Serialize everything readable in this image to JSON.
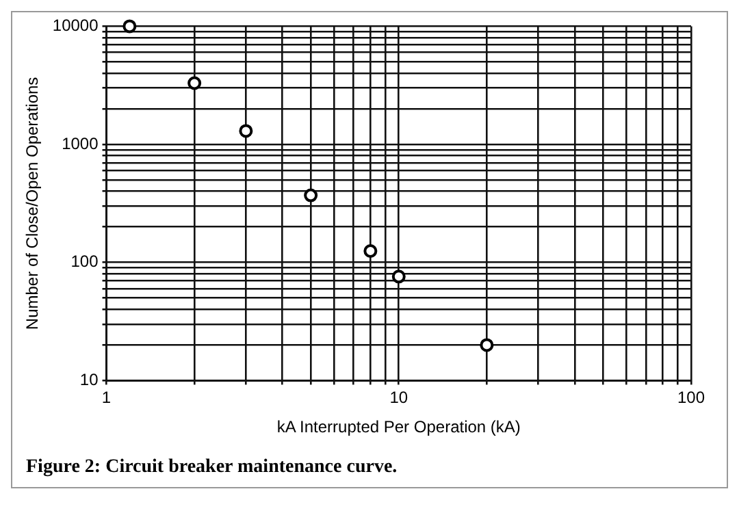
{
  "chart_data": {
    "type": "scatter",
    "xlabel": "kA Interrupted Per Operation (kA)",
    "ylabel": "Number of Close/Open Operations",
    "log": "xy",
    "grid": true,
    "marker": "circle",
    "legend": false,
    "annotations": [
      "Figure 2: Circuit breaker maintenance curve."
    ],
    "xlim": [
      1,
      100
    ],
    "ylim": [
      10,
      10000
    ],
    "xticks": [
      1,
      {
        "value": 2,
        "label": null
      },
      {
        "value": 3,
        "label": null
      },
      {
        "value": 4,
        "label": null
      },
      {
        "value": 5,
        "label": null
      },
      {
        "value": 6,
        "label": null
      },
      {
        "value": 7,
        "label": null
      },
      {
        "value": 8,
        "label": null
      },
      {
        "value": 9,
        "label": null
      },
      10,
      {
        "value": 20,
        "label": null
      },
      {
        "value": 30,
        "label": null
      },
      {
        "value": 40,
        "label": null
      },
      {
        "value": 50,
        "label": null
      },
      {
        "value": 60,
        "label": null
      },
      {
        "value": 70,
        "label": null
      },
      {
        "value": 80,
        "label": null
      },
      {
        "value": 90,
        "label": null
      },
      100
    ],
    "yticks": [
      10,
      {
        "value": 20,
        "label": null
      },
      {
        "value": 30,
        "label": null
      },
      {
        "value": 40,
        "label": null
      },
      {
        "value": 50,
        "label": null
      },
      {
        "value": 60,
        "label": null
      },
      {
        "value": 70,
        "label": null
      },
      {
        "value": 80,
        "label": null
      },
      {
        "value": 90,
        "label": null
      },
      100,
      {
        "value": 200,
        "label": null
      },
      {
        "value": 300,
        "label": null
      },
      {
        "value": 400,
        "label": null
      },
      {
        "value": 500,
        "label": null
      },
      {
        "value": 600,
        "label": null
      },
      {
        "value": 700,
        "label": null
      },
      {
        "value": 800,
        "label": null
      },
      {
        "value": 900,
        "label": null
      },
      1000,
      {
        "value": 2000,
        "label": null
      },
      {
        "value": 3000,
        "label": null
      },
      {
        "value": 4000,
        "label": null
      },
      {
        "value": 5000,
        "label": null
      },
      {
        "value": 6000,
        "label": null
      },
      {
        "value": 7000,
        "label": null
      },
      {
        "value": 8000,
        "label": null
      },
      {
        "value": 9000,
        "label": null
      },
      10000
    ],
    "series": [
      {
        "color": "#000000",
        "x": [
          1.2,
          2,
          3,
          5,
          8,
          10,
          20
        ],
        "values": [
          10000,
          3300,
          1300,
          370,
          125,
          76,
          20
        ]
      }
    ]
  }
}
